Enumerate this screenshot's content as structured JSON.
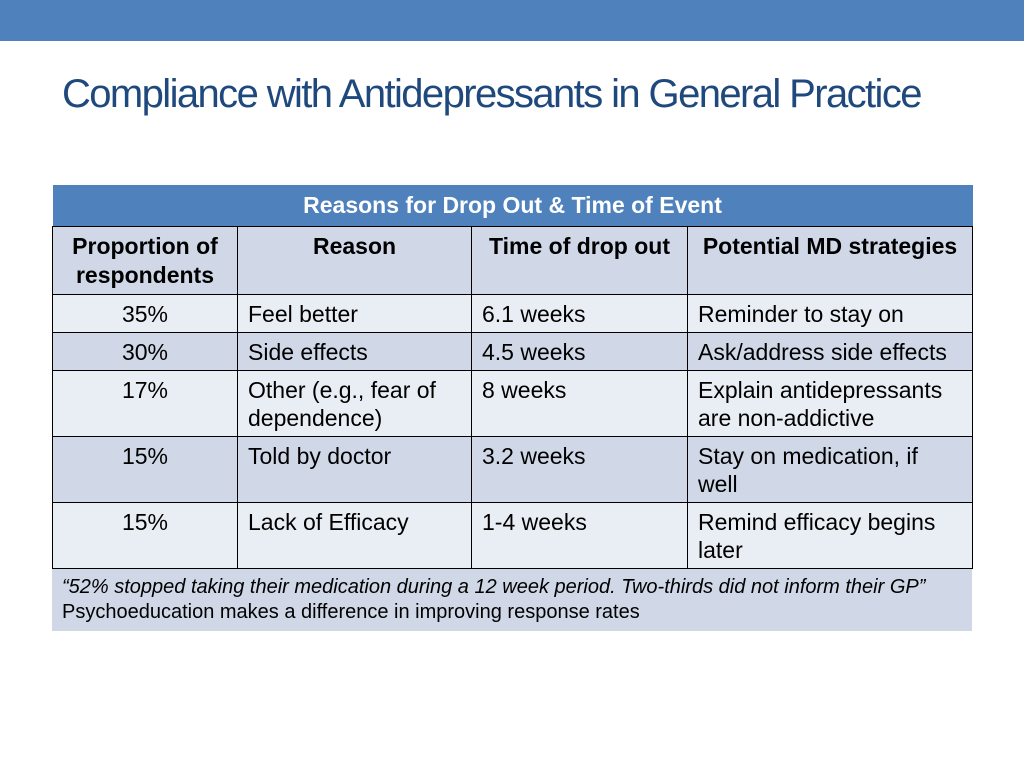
{
  "slide": {
    "title": "Compliance with Antidepressants in General Practice",
    "accent_color": "#4f81bd",
    "title_color": "#1f497d"
  },
  "table": {
    "banner": "Reasons for Drop Out & Time of Event",
    "headers": [
      "Proportion of respondents",
      "Reason",
      "Time of drop out",
      "Potential MD strategies"
    ],
    "rows": [
      {
        "proportion": "35%",
        "reason": "Feel better",
        "time": "6.1 weeks",
        "strategy": "Reminder to stay on"
      },
      {
        "proportion": "30%",
        "reason": "Side effects",
        "time": "4.5 weeks",
        "strategy": "Ask/address side effects"
      },
      {
        "proportion": "17%",
        "reason": "Other (e.g., fear of dependence)",
        "time": "8 weeks",
        "strategy": "Explain antidepressants are non-addictive"
      },
      {
        "proportion": "15%",
        "reason": "Told by doctor",
        "time": "3.2 weeks",
        "strategy": "Stay on medication, if well"
      },
      {
        "proportion": "15%",
        "reason": "Lack of Efficacy",
        "time": "1-4 weeks",
        "strategy": "Remind efficacy begins later"
      }
    ]
  },
  "footer": {
    "quote": "“52% stopped taking their medication during a 12 week period. Two-thirds did not inform their GP”",
    "note": "Psychoeducation makes a difference in improving response rates"
  }
}
